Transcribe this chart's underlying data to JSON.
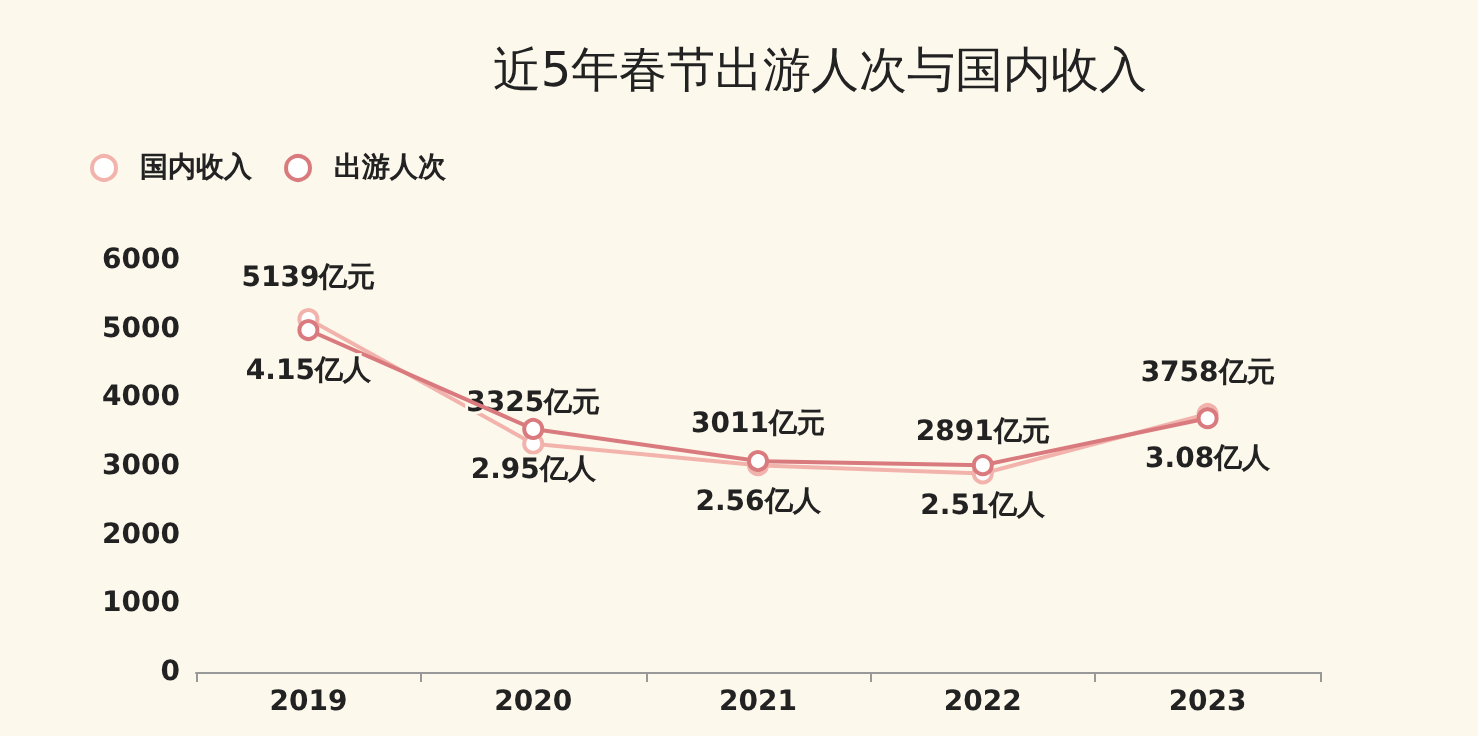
{
  "chart_data": {
    "type": "line",
    "title": "近5年春节出游人次与国内收入",
    "categories": [
      "2019",
      "2020",
      "2021",
      "2022",
      "2023"
    ],
    "series": [
      {
        "name": "国内收入",
        "color": "#f2b3ad",
        "values": [
          5139,
          3325,
          3011,
          2891,
          3758
        ],
        "value_labels": [
          "5139亿元",
          "3325亿元",
          "3011亿元",
          "2891亿元",
          "3758亿元"
        ]
      },
      {
        "name": "出游人次",
        "color": "#d97b7e",
        "axis": "y2",
        "values": [
          4.15,
          2.95,
          2.56,
          2.51,
          3.08
        ],
        "value_labels": [
          "4.15亿人",
          "2.95亿人",
          "2.56亿人",
          "2.51亿人",
          "3.08亿人"
        ]
      }
    ],
    "ylim": [
      0,
      6000
    ],
    "yticks": [
      0,
      1000,
      2000,
      3000,
      4000,
      5000,
      6000
    ],
    "tick_labels": "xy",
    "grid": false,
    "legend": "top left",
    "marker": "circle",
    "line_style": "solid"
  }
}
